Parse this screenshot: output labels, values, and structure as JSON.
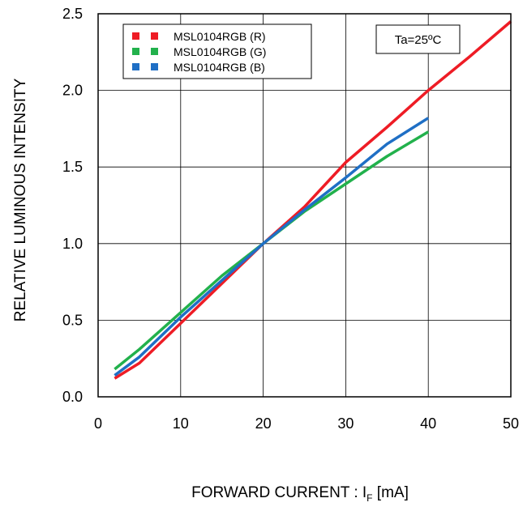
{
  "chart_data": {
    "type": "line",
    "title": "",
    "xlabel": "FORWARD CURRENT : IF [mA]",
    "xlabel_parts": {
      "main": "FORWARD CURRENT : I",
      "subscript": "F",
      "unit": " [mA]"
    },
    "ylabel": "RELATIVE LUMINOUS INTENSITY",
    "xlim": [
      0,
      50
    ],
    "ylim": [
      0,
      2.5
    ],
    "x_ticks": [
      0,
      10,
      20,
      30,
      40,
      50
    ],
    "x_tick_labels": [
      "0",
      "10",
      "20",
      "30",
      "40",
      "50"
    ],
    "y_ticks": [
      0,
      0.5,
      1.0,
      1.5,
      2.0,
      2.5
    ],
    "y_tick_labels": [
      "0.0",
      "0.5",
      "1.0",
      "1.5",
      "2.0",
      "2.5"
    ],
    "grid": true,
    "legend_position": "top-left",
    "annotation": "Ta=25ºC",
    "series": [
      {
        "name": "MSL0104RGB (R)",
        "color": "#ee1c25",
        "points": [
          [
            2,
            0.12
          ],
          [
            5,
            0.22
          ],
          [
            10,
            0.48
          ],
          [
            15,
            0.74
          ],
          [
            20,
            1.0
          ],
          [
            25,
            1.24
          ],
          [
            30,
            1.53
          ],
          [
            35,
            1.76
          ],
          [
            40,
            2.0
          ],
          [
            45,
            2.22
          ],
          [
            50,
            2.45
          ]
        ]
      },
      {
        "name": "MSL0104RGB (G)",
        "color": "#22b14c",
        "points": [
          [
            2,
            0.18
          ],
          [
            5,
            0.31
          ],
          [
            10,
            0.55
          ],
          [
            15,
            0.79
          ],
          [
            20,
            1.0
          ],
          [
            25,
            1.21
          ],
          [
            30,
            1.39
          ],
          [
            35,
            1.57
          ],
          [
            40,
            1.73
          ]
        ]
      },
      {
        "name": "MSL0104RGB (B)",
        "color": "#1f6fc5",
        "points": [
          [
            2,
            0.14
          ],
          [
            5,
            0.26
          ],
          [
            10,
            0.52
          ],
          [
            15,
            0.76
          ],
          [
            20,
            1.0
          ],
          [
            25,
            1.22
          ],
          [
            30,
            1.43
          ],
          [
            35,
            1.65
          ],
          [
            40,
            1.82
          ]
        ]
      }
    ]
  }
}
